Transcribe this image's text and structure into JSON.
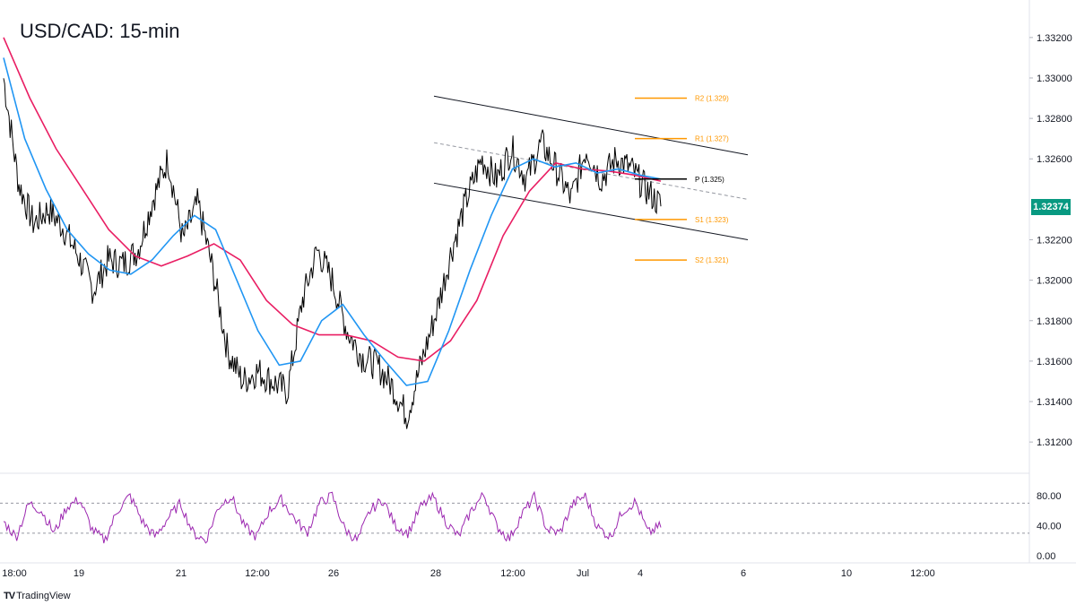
{
  "header": {
    "title": "USD/CAD: 15-min"
  },
  "branding": {
    "logo": "TV",
    "name": "TradingView"
  },
  "colors": {
    "price": "#000000",
    "ma_fast": "#2196f3",
    "ma_slow": "#e91e63",
    "rsi": "#9c27b0",
    "pivot_support_resistance": "#ff9800",
    "pivot": "#000000",
    "last_price_bg": "#089981"
  },
  "last_price": "1.32374",
  "chart_data": [
    {
      "type": "line",
      "panel": "price",
      "title": "USD/CAD: 15-min",
      "x_ticks": [
        "18:00",
        "19",
        "21",
        "12:00",
        "26",
        "28",
        "12:00",
        "Jul",
        "4",
        "6",
        "10",
        "12:00"
      ],
      "y_ticks": [
        "1.33200",
        "1.33000",
        "1.32800",
        "1.32600",
        "1.32200",
        "1.32000",
        "1.31800",
        "1.31600",
        "1.31400",
        "1.31200"
      ],
      "ylim": [
        1.3105,
        1.3335
      ],
      "approx_close_series": [
        1.33,
        1.3248,
        1.3228,
        1.3235,
        1.3226,
        1.3212,
        1.3195,
        1.321,
        1.3208,
        1.3215,
        1.324,
        1.326,
        1.322,
        1.3238,
        1.3205,
        1.3165,
        1.315,
        1.3155,
        1.315,
        1.3145,
        1.319,
        1.3215,
        1.32,
        1.3175,
        1.3162,
        1.3158,
        1.3148,
        1.3133,
        1.316,
        1.3185,
        1.3215,
        1.324,
        1.326,
        1.325,
        1.3265,
        1.325,
        1.3268,
        1.3255,
        1.324,
        1.3265,
        1.325,
        1.326,
        1.3255,
        1.3245,
        1.3237
      ],
      "series": [
        {
          "name": "",
          "role": "ma_fast",
          "values": [
            1.331,
            1.327,
            1.3245,
            1.3225,
            1.3213,
            1.3205,
            1.3203,
            1.321,
            1.3222,
            1.3232,
            1.3225,
            1.32,
            1.3175,
            1.3158,
            1.316,
            1.318,
            1.3188,
            1.3173,
            1.316,
            1.3148,
            1.315,
            1.3175,
            1.3205,
            1.3232,
            1.3255,
            1.326,
            1.3256,
            1.3258,
            1.3253,
            1.3255,
            1.3252,
            1.325
          ]
        },
        {
          "name": "",
          "role": "ma_slow",
          "values": [
            1.332,
            1.329,
            1.3265,
            1.3245,
            1.3225,
            1.3212,
            1.3207,
            1.3212,
            1.3218,
            1.321,
            1.319,
            1.3178,
            1.3173,
            1.3173,
            1.317,
            1.3162,
            1.316,
            1.317,
            1.319,
            1.3222,
            1.3244,
            1.3258,
            1.3255,
            1.3254,
            1.3252,
            1.3249
          ]
        }
      ],
      "channel": {
        "upper": [
          1.3291,
          1.3262
        ],
        "lower": [
          1.3248,
          1.322
        ],
        "middle": [
          1.3268,
          1.324
        ]
      },
      "pivot_levels": [
        {
          "label": "R2 (1.329)",
          "value": 1.329
        },
        {
          "label": "R1 (1.327)",
          "value": 1.327
        },
        {
          "label": "P (1.325)",
          "value": 1.325
        },
        {
          "label": "S1 (1.323)",
          "value": 1.323
        },
        {
          "label": "S2 (1.321)",
          "value": 1.321
        }
      ]
    },
    {
      "type": "line",
      "panel": "rsi",
      "y_ticks": [
        "80.00",
        "40.00",
        "0.00"
      ],
      "ylim": [
        0,
        100
      ],
      "reference_lines": [
        70,
        30
      ],
      "approx_values": [
        45,
        25,
        70,
        60,
        30,
        65,
        75,
        35,
        20,
        60,
        80,
        45,
        25,
        50,
        70,
        30,
        20,
        65,
        80,
        40,
        25,
        60,
        75,
        50,
        30,
        70,
        80,
        35,
        20,
        60,
        75,
        40,
        30,
        65,
        78,
        45,
        25,
        60,
        82,
        40,
        22,
        55,
        78,
        35,
        30,
        68,
        80,
        38,
        25,
        60,
        72,
        30,
        40
      ]
    }
  ]
}
